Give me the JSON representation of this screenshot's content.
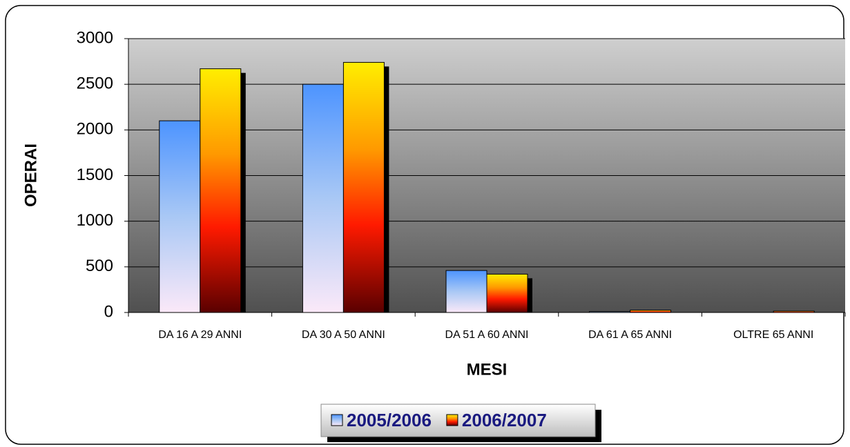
{
  "chart_data": {
    "type": "bar",
    "x_label": "MESI",
    "y_label": "OPERAI",
    "categories": [
      "DA 16 A 29 ANNI",
      "DA 30 A 50 ANNI",
      "DA 51 A 60 ANNI",
      "DA 61 A 65 ANNI",
      "OLTRE 65 ANNI"
    ],
    "series": [
      {
        "name": "2005/2006",
        "color": "#4d94ff",
        "values": [
          2100,
          2500,
          460,
          10,
          0
        ]
      },
      {
        "name": "2006/2007",
        "color": "#ffee00",
        "values": [
          2670,
          2740,
          420,
          25,
          15
        ]
      }
    ],
    "ylim": [
      0,
      3000
    ],
    "yticks": [
      0,
      500,
      1000,
      1500,
      2000,
      2500,
      3000
    ],
    "grid": true,
    "legend": "bottom"
  }
}
